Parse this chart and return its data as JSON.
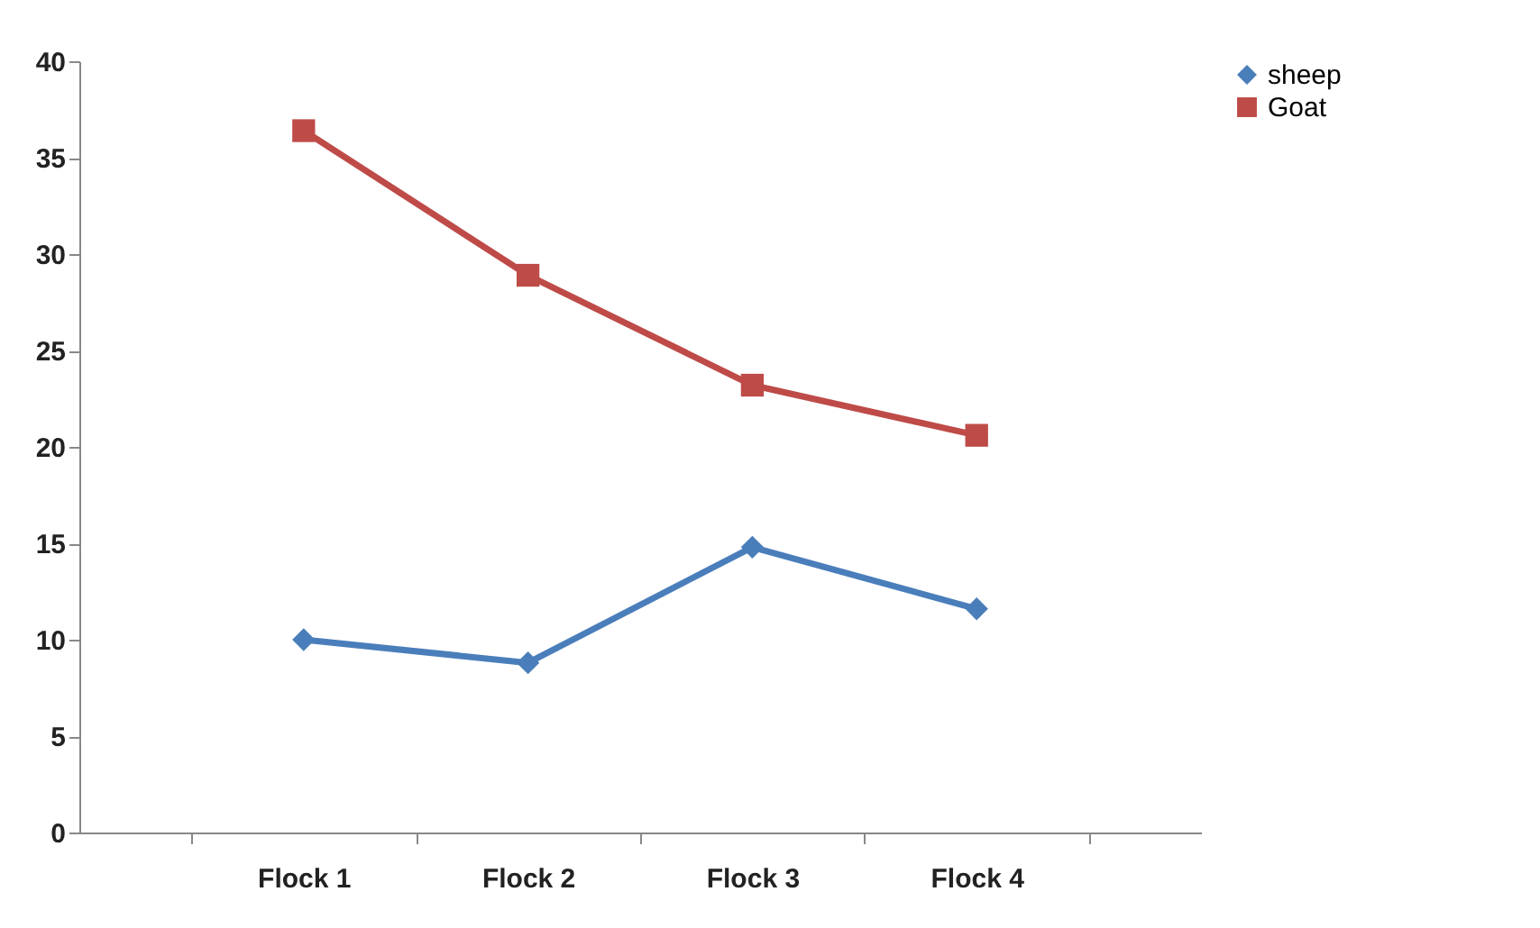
{
  "chart_data": {
    "type": "line",
    "categories": [
      "Flock 1",
      "Flock 2",
      "Flock 3",
      "Flock 4"
    ],
    "series": [
      {
        "name": "sheep",
        "color": "#4a7ebb",
        "marker": "diamond",
        "values": [
          10,
          8.8,
          14.8,
          11.6
        ]
      },
      {
        "name": "Goat",
        "color": "#be4b48",
        "marker": "square",
        "values": [
          36.4,
          28.9,
          23.2,
          20.6
        ]
      }
    ],
    "ylim": [
      0,
      40
    ],
    "yticks": [
      0,
      5,
      10,
      15,
      20,
      25,
      30,
      35,
      40
    ],
    "grid": false,
    "legend": "right",
    "line_style": "solid"
  }
}
